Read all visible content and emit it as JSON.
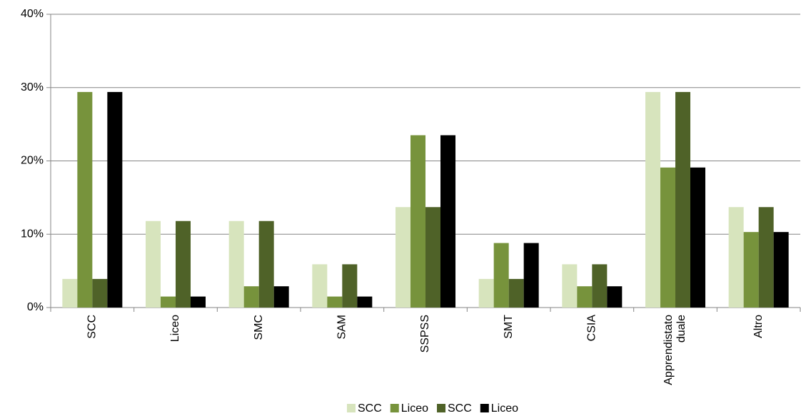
{
  "chart_data": {
    "type": "bar",
    "categories": [
      "SCC",
      "Liceo",
      "SMC",
      "SAM",
      "SSPSS",
      "SMT",
      "CSIA",
      "Apprendistato duale",
      "Altro"
    ],
    "series": [
      {
        "name": "SCC",
        "color": "#d7e4bd",
        "values": [
          3.9,
          11.8,
          11.8,
          5.9,
          13.7,
          3.9,
          5.9,
          29.4,
          13.7
        ]
      },
      {
        "name": "Liceo",
        "color": "#77933c",
        "values": [
          29.4,
          1.5,
          2.9,
          1.5,
          23.5,
          8.8,
          2.9,
          19.1,
          10.3
        ]
      },
      {
        "name": "SCC",
        "color": "#4f6228",
        "values": [
          3.9,
          11.8,
          11.8,
          5.9,
          13.7,
          3.9,
          5.9,
          29.4,
          13.7
        ]
      },
      {
        "name": "Liceo",
        "color": "#000000",
        "values": [
          29.4,
          1.5,
          2.9,
          1.5,
          23.5,
          8.8,
          2.9,
          19.1,
          10.3
        ]
      }
    ],
    "ylim": [
      0,
      40
    ],
    "yticks": [
      {
        "value": 0,
        "label": "0%"
      },
      {
        "value": 10,
        "label": "10%"
      },
      {
        "value": 20,
        "label": "20%"
      },
      {
        "value": 30,
        "label": "30%"
      },
      {
        "value": 40,
        "label": "40%"
      }
    ],
    "grid": true,
    "legend": "bottom"
  }
}
